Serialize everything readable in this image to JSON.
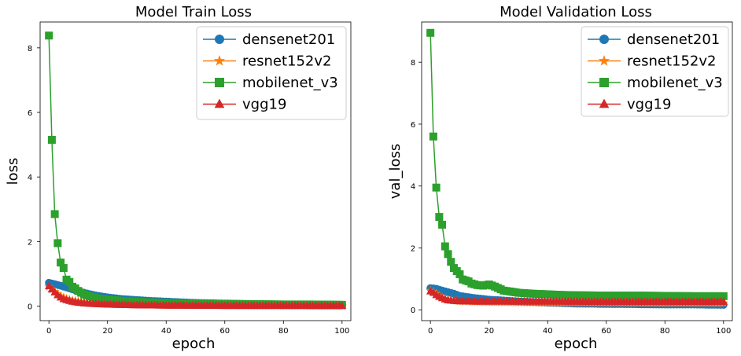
{
  "chart_data": [
    {
      "type": "line",
      "title": "Model Train Loss",
      "xlabel": "epoch",
      "ylabel": "loss",
      "xlim": [
        -3,
        103
      ],
      "ylim": [
        -0.45,
        8.8
      ],
      "xticks": [
        0,
        20,
        40,
        60,
        80,
        100
      ],
      "yticks": [
        0,
        2,
        4,
        6,
        8
      ],
      "grid": false,
      "legend": "top-right",
      "series": [
        {
          "name": "densenet201",
          "color": "#1f77b4",
          "marker": "circle",
          "points": [
            [
              0,
              0.72
            ],
            [
              2,
              0.68
            ],
            [
              4,
              0.63
            ],
            [
              6,
              0.58
            ],
            [
              8,
              0.52
            ],
            [
              10,
              0.46
            ],
            [
              12,
              0.41
            ],
            [
              14,
              0.37
            ],
            [
              16,
              0.33
            ],
            [
              18,
              0.3
            ],
            [
              20,
              0.27
            ],
            [
              25,
              0.22
            ],
            [
              30,
              0.19
            ],
            [
              35,
              0.16
            ],
            [
              40,
              0.14
            ],
            [
              45,
              0.12
            ],
            [
              50,
              0.1
            ],
            [
              60,
              0.08
            ],
            [
              70,
              0.06
            ],
            [
              80,
              0.05
            ],
            [
              90,
              0.04
            ],
            [
              100,
              0.03
            ]
          ]
        },
        {
          "name": "resnet152v2",
          "color": "#ff7f0e",
          "marker": "star",
          "points": [
            [
              0,
              0.6
            ],
            [
              1,
              0.52
            ],
            [
              2,
              0.45
            ],
            [
              3,
              0.38
            ],
            [
              4,
              0.32
            ],
            [
              5,
              0.27
            ],
            [
              6,
              0.23
            ],
            [
              8,
              0.18
            ],
            [
              10,
              0.15
            ],
            [
              12,
              0.12
            ],
            [
              15,
              0.1
            ],
            [
              20,
              0.08
            ],
            [
              30,
              0.05
            ],
            [
              40,
              0.04
            ],
            [
              50,
              0.03
            ],
            [
              60,
              0.02
            ],
            [
              80,
              0.015
            ],
            [
              100,
              0.01
            ]
          ]
        },
        {
          "name": "mobilenet_v3",
          "color": "#2ca02c",
          "marker": "square",
          "points": [
            [
              0,
              8.38
            ],
            [
              1,
              5.15
            ],
            [
              2,
              2.85
            ],
            [
              3,
              1.95
            ],
            [
              4,
              1.35
            ],
            [
              5,
              1.18
            ],
            [
              6,
              0.82
            ],
            [
              7,
              0.75
            ],
            [
              8,
              0.6
            ],
            [
              9,
              0.55
            ],
            [
              10,
              0.47
            ],
            [
              12,
              0.36
            ],
            [
              14,
              0.3
            ],
            [
              16,
              0.25
            ],
            [
              18,
              0.22
            ],
            [
              20,
              0.2
            ],
            [
              25,
              0.16
            ],
            [
              30,
              0.13
            ],
            [
              40,
              0.1
            ],
            [
              50,
              0.08
            ],
            [
              60,
              0.07
            ],
            [
              70,
              0.06
            ],
            [
              80,
              0.05
            ],
            [
              90,
              0.05
            ],
            [
              100,
              0.04
            ]
          ]
        },
        {
          "name": "vgg19",
          "color": "#d62728",
          "marker": "triangle",
          "points": [
            [
              0,
              0.62
            ],
            [
              1,
              0.52
            ],
            [
              2,
              0.43
            ],
            [
              3,
              0.34
            ],
            [
              4,
              0.27
            ],
            [
              5,
              0.22
            ],
            [
              6,
              0.19
            ],
            [
              8,
              0.14
            ],
            [
              10,
              0.11
            ],
            [
              12,
              0.09
            ],
            [
              15,
              0.07
            ],
            [
              20,
              0.05
            ],
            [
              30,
              0.03
            ],
            [
              40,
              0.02
            ],
            [
              60,
              0.01
            ],
            [
              80,
              0.01
            ],
            [
              100,
              0.005
            ]
          ]
        }
      ]
    },
    {
      "type": "line",
      "title": "Model Validation Loss",
      "xlabel": "epoch",
      "ylabel": "val_loss",
      "xlim": [
        -3,
        103
      ],
      "ylim": [
        -0.35,
        9.3
      ],
      "xticks": [
        0,
        20,
        40,
        60,
        80,
        100
      ],
      "yticks": [
        0,
        2,
        4,
        6,
        8
      ],
      "grid": false,
      "legend": "top-right",
      "series": [
        {
          "name": "densenet201",
          "color": "#1f77b4",
          "marker": "circle",
          "points": [
            [
              0,
              0.7
            ],
            [
              2,
              0.68
            ],
            [
              4,
              0.62
            ],
            [
              6,
              0.57
            ],
            [
              8,
              0.52
            ],
            [
              10,
              0.45
            ],
            [
              15,
              0.38
            ],
            [
              20,
              0.33
            ],
            [
              25,
              0.3
            ],
            [
              30,
              0.27
            ],
            [
              35,
              0.25
            ],
            [
              40,
              0.23
            ],
            [
              50,
              0.2
            ],
            [
              60,
              0.19
            ],
            [
              70,
              0.18
            ],
            [
              80,
              0.17
            ],
            [
              90,
              0.17
            ],
            [
              100,
              0.16
            ]
          ]
        },
        {
          "name": "resnet152v2",
          "color": "#ff7f0e",
          "marker": "star",
          "points": [
            [
              0,
              0.62
            ],
            [
              1,
              0.58
            ],
            [
              2,
              0.52
            ],
            [
              3,
              0.45
            ],
            [
              4,
              0.4
            ],
            [
              5,
              0.36
            ],
            [
              6,
              0.33
            ],
            [
              8,
              0.3
            ],
            [
              10,
              0.28
            ],
            [
              15,
              0.26
            ],
            [
              20,
              0.25
            ],
            [
              30,
              0.24
            ],
            [
              40,
              0.23
            ],
            [
              60,
              0.23
            ],
            [
              80,
              0.22
            ],
            [
              100,
              0.22
            ]
          ]
        },
        {
          "name": "mobilenet_v3",
          "color": "#2ca02c",
          "marker": "square",
          "points": [
            [
              0,
              8.95
            ],
            [
              1,
              5.6
            ],
            [
              2,
              3.95
            ],
            [
              3,
              3.0
            ],
            [
              4,
              2.75
            ],
            [
              5,
              2.05
            ],
            [
              6,
              1.8
            ],
            [
              7,
              1.55
            ],
            [
              8,
              1.35
            ],
            [
              9,
              1.25
            ],
            [
              10,
              1.15
            ],
            [
              11,
              0.98
            ],
            [
              12,
              0.95
            ],
            [
              13,
              0.92
            ],
            [
              14,
              0.85
            ],
            [
              16,
              0.8
            ],
            [
              18,
              0.78
            ],
            [
              20,
              0.82
            ],
            [
              22,
              0.75
            ],
            [
              25,
              0.62
            ],
            [
              28,
              0.58
            ],
            [
              30,
              0.55
            ],
            [
              35,
              0.52
            ],
            [
              40,
              0.5
            ],
            [
              45,
              0.48
            ],
            [
              50,
              0.47
            ],
            [
              60,
              0.46
            ],
            [
              70,
              0.46
            ],
            [
              80,
              0.45
            ],
            [
              90,
              0.44
            ],
            [
              100,
              0.44
            ]
          ]
        },
        {
          "name": "vgg19",
          "color": "#d62728",
          "marker": "triangle",
          "points": [
            [
              0,
              0.6
            ],
            [
              1,
              0.55
            ],
            [
              2,
              0.48
            ],
            [
              3,
              0.42
            ],
            [
              4,
              0.38
            ],
            [
              5,
              0.34
            ],
            [
              6,
              0.31
            ],
            [
              8,
              0.29
            ],
            [
              10,
              0.28
            ],
            [
              15,
              0.27
            ],
            [
              20,
              0.27
            ],
            [
              30,
              0.27
            ],
            [
              40,
              0.27
            ],
            [
              60,
              0.26
            ],
            [
              80,
              0.26
            ],
            [
              100,
              0.26
            ]
          ]
        }
      ]
    }
  ]
}
